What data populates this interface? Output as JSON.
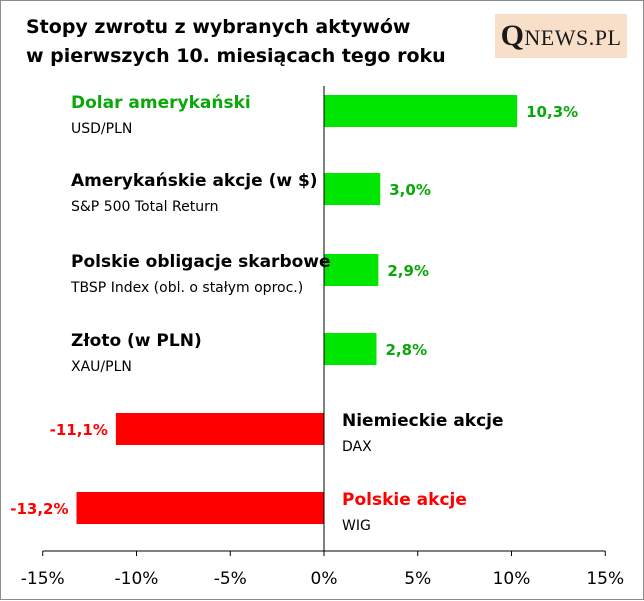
{
  "chart_data": {
    "type": "bar",
    "orientation": "horizontal",
    "title": [
      "Stopy zwrotu z wybranych aktywów",
      "w pierwszych 10. miesiącach tego roku"
    ],
    "logo": "QNEWS.PL",
    "xlim": [
      -15,
      15
    ],
    "xticks": [
      -15,
      -10,
      -5,
      0,
      5,
      10,
      15
    ],
    "xtick_labels": [
      "-15%",
      "-10%",
      "-5%",
      "0%",
      "5%",
      "10%",
      "15%"
    ],
    "grid": false,
    "categories": [
      {
        "name": "Dolar amerykański",
        "sub": "USD/PLN",
        "value": 10.3,
        "label": "10,3%",
        "name_color": "#0aa80a"
      },
      {
        "name": "Amerykańskie akcje (w $)",
        "sub": "S&P 500 Total Return",
        "value": 3.0,
        "label": "3,0%",
        "name_color": "#000000"
      },
      {
        "name": "Polskie obligacje skarbowe",
        "sub": "TBSP Index (obl. o stałym oproc.)",
        "value": 2.9,
        "label": "2,9%",
        "name_color": "#000000"
      },
      {
        "name": "Złoto (w PLN)",
        "sub": "XAU/PLN",
        "value": 2.8,
        "label": "2,8%",
        "name_color": "#000000"
      },
      {
        "name": "Niemieckie akcje",
        "sub": "DAX",
        "value": -11.1,
        "label": "-11,1%",
        "name_color": "#000000"
      },
      {
        "name": "Polskie akcje",
        "sub": "WIG",
        "value": -13.2,
        "label": "-13,2%",
        "name_color": "#ff0000"
      }
    ],
    "colors": {
      "positive": "#00e600",
      "negative": "#ff0000",
      "positive_label": "#0aa80a",
      "negative_label": "#ff0000",
      "logo_bg": "#f8dfc9"
    }
  }
}
